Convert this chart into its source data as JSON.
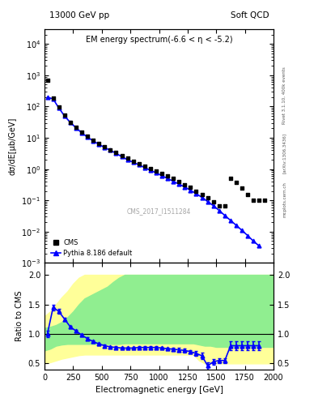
{
  "title_left": "13000 GeV pp",
  "title_right": "Soft QCD",
  "main_title": "EM energy spectrum(-6.6 < η < -5.2)",
  "ylabel_main": "dσ/dE[μb/GeV]",
  "ylabel_ratio": "Ratio to CMS",
  "xlabel": "Electromagnetic energy [GeV]",
  "watermark": "CMS_2017_I1511284",
  "right_label": "Rivet 3.1.10, 400k events",
  "arxiv_label": "[arXiv:1306.3436]",
  "mcplots_label": "mcplots.cern.ch",
  "cms_data_x": [
    25,
    75,
    125,
    175,
    225,
    275,
    325,
    375,
    425,
    475,
    525,
    575,
    625,
    675,
    725,
    775,
    825,
    875,
    925,
    975,
    1025,
    1075,
    1125,
    1175,
    1225,
    1275,
    1325,
    1375,
    1425,
    1475,
    1525,
    1575,
    1625,
    1675,
    1725,
    1775,
    1825,
    1875,
    1925
  ],
  "cms_data_y": [
    700,
    190,
    95,
    52,
    32,
    22,
    15,
    11,
    8.5,
    6.5,
    5.2,
    4.2,
    3.4,
    2.7,
    2.2,
    1.8,
    1.5,
    1.25,
    1.05,
    0.88,
    0.73,
    0.6,
    0.5,
    0.4,
    0.32,
    0.26,
    0.2,
    0.15,
    0.12,
    0.09,
    0.065,
    0.065,
    0.5,
    0.38,
    0.25,
    0.15,
    0.1,
    0.1,
    0.1
  ],
  "pythia_x": [
    25,
    75,
    125,
    175,
    225,
    275,
    325,
    375,
    425,
    475,
    525,
    575,
    625,
    675,
    725,
    775,
    825,
    875,
    925,
    975,
    1025,
    1075,
    1125,
    1175,
    1225,
    1275,
    1325,
    1375,
    1425,
    1475,
    1525,
    1575,
    1625,
    1675,
    1725,
    1775,
    1825,
    1875
  ],
  "pythia_y": [
    200,
    175,
    90,
    50,
    31,
    21,
    14.5,
    10.5,
    8.0,
    6.2,
    4.9,
    4.0,
    3.2,
    2.5,
    2.0,
    1.65,
    1.37,
    1.12,
    0.92,
    0.76,
    0.62,
    0.5,
    0.41,
    0.33,
    0.27,
    0.21,
    0.165,
    0.125,
    0.092,
    0.068,
    0.048,
    0.033,
    0.023,
    0.016,
    0.011,
    0.0075,
    0.005,
    0.0035
  ],
  "ratio_x": [
    25,
    75,
    125,
    175,
    225,
    275,
    325,
    375,
    425,
    475,
    525,
    575,
    625,
    675,
    725,
    775,
    825,
    875,
    925,
    975,
    1025,
    1075,
    1125,
    1175,
    1225,
    1275,
    1325,
    1375,
    1425,
    1475,
    1525,
    1575,
    1625,
    1675,
    1725,
    1775,
    1825,
    1875
  ],
  "ratio_y": [
    1.0,
    1.45,
    1.38,
    1.25,
    1.12,
    1.05,
    0.98,
    0.92,
    0.87,
    0.83,
    0.8,
    0.78,
    0.77,
    0.76,
    0.76,
    0.76,
    0.77,
    0.77,
    0.77,
    0.77,
    0.76,
    0.75,
    0.74,
    0.73,
    0.72,
    0.7,
    0.67,
    0.63,
    0.46,
    0.53,
    0.55,
    0.55,
    0.8,
    0.8,
    0.8,
    0.8,
    0.8,
    0.8
  ],
  "ratio_err": [
    0.05,
    0.05,
    0.04,
    0.03,
    0.02,
    0.02,
    0.02,
    0.02,
    0.02,
    0.02,
    0.02,
    0.02,
    0.02,
    0.02,
    0.02,
    0.02,
    0.02,
    0.02,
    0.02,
    0.02,
    0.02,
    0.02,
    0.02,
    0.03,
    0.03,
    0.03,
    0.04,
    0.05,
    0.06,
    0.05,
    0.04,
    0.04,
    0.08,
    0.08,
    0.08,
    0.08,
    0.08,
    0.08
  ],
  "green_band_x": [
    0,
    50,
    100,
    150,
    200,
    250,
    300,
    350,
    400,
    450,
    500,
    550,
    600,
    650,
    700,
    750,
    800,
    850,
    900,
    950,
    1000,
    1050,
    1100,
    1150,
    1200,
    1250,
    1300,
    1350,
    1400,
    1450,
    1500,
    1550,
    1600,
    1650,
    1700,
    1750,
    1800,
    1850,
    1900,
    2000
  ],
  "green_band_lo": [
    0.72,
    0.75,
    0.8,
    0.82,
    0.83,
    0.83,
    0.83,
    0.83,
    0.83,
    0.83,
    0.83,
    0.83,
    0.83,
    0.83,
    0.84,
    0.84,
    0.84,
    0.84,
    0.84,
    0.84,
    0.84,
    0.84,
    0.84,
    0.84,
    0.84,
    0.84,
    0.84,
    0.82,
    0.8,
    0.8,
    0.78,
    0.78,
    0.78,
    0.78,
    0.78,
    0.78,
    0.78,
    0.78,
    0.78,
    0.78
  ],
  "green_band_hi": [
    1.1,
    1.12,
    1.15,
    1.2,
    1.28,
    1.38,
    1.5,
    1.6,
    1.65,
    1.7,
    1.75,
    1.8,
    1.88,
    1.95,
    2.0,
    2.0,
    2.0,
    2.0,
    2.0,
    2.0,
    2.0,
    2.0,
    2.0,
    2.0,
    2.0,
    2.0,
    2.0,
    2.0,
    2.0,
    2.0,
    2.0,
    2.0,
    2.0,
    2.0,
    2.0,
    2.0,
    2.0,
    2.0,
    2.0,
    2.0
  ],
  "yellow_band_x": [
    0,
    50,
    100,
    150,
    200,
    250,
    300,
    350,
    400,
    450,
    500,
    550,
    600,
    650,
    700,
    750,
    800,
    850,
    900,
    950,
    1000,
    1050,
    1100,
    1150,
    1200,
    1250,
    1300,
    1350,
    1400,
    1450,
    1500,
    1550,
    1600,
    1650,
    1700,
    1750,
    1800,
    1850,
    1900,
    2000
  ],
  "yellow_band_lo": [
    0.5,
    0.52,
    0.55,
    0.58,
    0.6,
    0.62,
    0.64,
    0.65,
    0.65,
    0.65,
    0.65,
    0.65,
    0.65,
    0.65,
    0.65,
    0.65,
    0.65,
    0.65,
    0.65,
    0.65,
    0.65,
    0.65,
    0.65,
    0.65,
    0.65,
    0.65,
    0.65,
    0.55,
    0.5,
    0.5,
    0.5,
    0.5,
    0.5,
    0.5,
    0.5,
    0.5,
    0.5,
    0.5,
    0.5,
    0.5
  ],
  "yellow_band_hi": [
    1.3,
    1.38,
    1.5,
    1.62,
    1.72,
    1.85,
    1.95,
    2.0,
    2.0,
    2.0,
    2.0,
    2.0,
    2.0,
    2.0,
    2.0,
    2.0,
    2.0,
    2.0,
    2.0,
    2.0,
    2.0,
    2.0,
    2.0,
    2.0,
    2.0,
    2.0,
    2.0,
    2.0,
    2.0,
    2.0,
    2.0,
    2.0,
    2.0,
    2.0,
    2.0,
    2.0,
    2.0,
    2.0,
    2.0,
    2.0
  ],
  "cms_color": "black",
  "pythia_color": "blue",
  "green_color": "#90ee90",
  "yellow_color": "#ffff99",
  "xlim": [
    0,
    2000
  ],
  "ylim_main": [
    0.001,
    30000
  ],
  "ylim_ratio": [
    0.4,
    2.2
  ],
  "ratio_yticks": [
    0.5,
    1.0,
    1.5,
    2.0
  ]
}
